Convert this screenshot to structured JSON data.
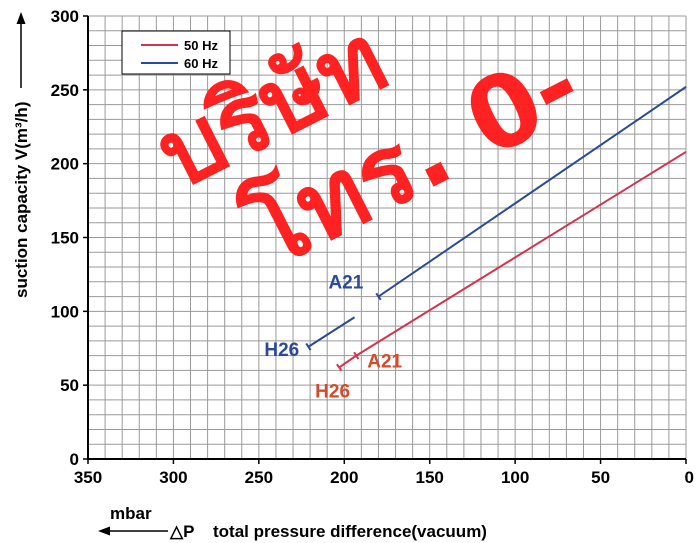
{
  "chart_data": {
    "type": "line",
    "xlabel": "total pressure difference(vacuum)",
    "x_unit": "mbar",
    "x_symbol": "△P",
    "ylabel": "suction capacity V(m³/h)",
    "xlim": [
      350,
      0
    ],
    "ylim": [
      0,
      300
    ],
    "x_ticks": [
      "350",
      "300",
      "250",
      "200",
      "150",
      "100",
      "50",
      "0"
    ],
    "y_ticks": [
      "0",
      "50",
      "100",
      "150",
      "200",
      "250",
      "300"
    ],
    "grid": true,
    "legend_position": "top-left",
    "series": [
      {
        "name": "50 Hz",
        "color": "#d4334f",
        "curves": [
          {
            "label": "H26",
            "label_color": "#d44a2a",
            "x": [
              203,
              193
            ],
            "y": [
              62,
              70
            ]
          },
          {
            "label": "A21",
            "label_color": "#d44a2a",
            "x": [
              193,
              0
            ],
            "y": [
              70,
              208
            ]
          }
        ]
      },
      {
        "name": "60 Hz",
        "color": "#2b4a9a",
        "curves": [
          {
            "label": "H26",
            "label_color": "#2b4a9a",
            "x": [
              221,
              194
            ],
            "y": [
              76,
              96
            ]
          },
          {
            "label": "A21",
            "label_color": "#2b4a9a",
            "x": [
              180,
              0
            ],
            "y": [
              110,
              252
            ]
          }
        ]
      }
    ]
  },
  "watermark": {
    "line1": "บริษัท",
    "line2": "โทร. 0-",
    "color": "#ff1a1a"
  }
}
